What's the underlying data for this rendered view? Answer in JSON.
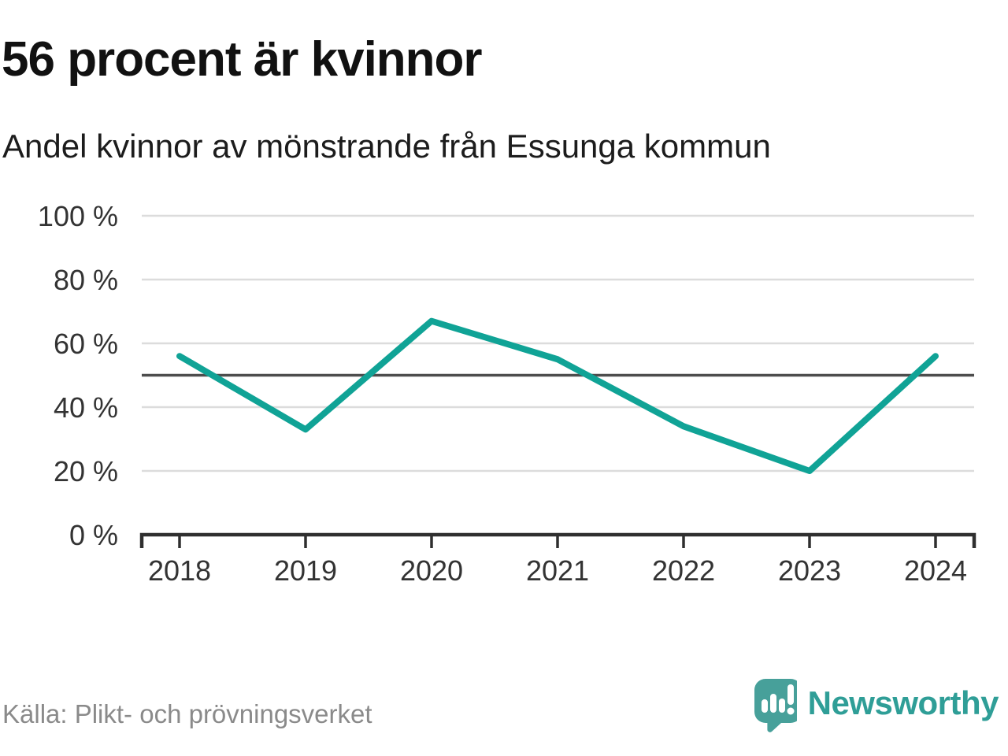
{
  "header": {
    "title": "56 procent är kvinnor",
    "subtitle": "Andel kvinnor av mönstrande från Essunga kommun"
  },
  "chart_data": {
    "type": "line",
    "title": "56 procent är kvinnor",
    "subtitle": "Andel kvinnor av mönstrande från Essunga kommun",
    "categories": [
      "2018",
      "2019",
      "2020",
      "2021",
      "2022",
      "2023",
      "2024"
    ],
    "series": [
      {
        "name": "Andel kvinnor",
        "values": [
          56,
          33,
          67,
          55,
          34,
          20,
          56
        ]
      }
    ],
    "unit": "%",
    "ylim": [
      0,
      100
    ],
    "yticks": [
      0,
      20,
      40,
      60,
      80,
      100
    ],
    "ytick_label_format": "{v} %",
    "reference_line": 50,
    "grid": "horizontal",
    "legend": "none",
    "colors": {
      "line": "#10a396",
      "grid": "#dcdcdc",
      "reference": "#4d4d4d",
      "axis": "#2f2f2f",
      "tick_label": "#333333"
    }
  },
  "footer": {
    "source": "Källa: Plikt- och prövningsverket",
    "brand": "Newsworthy"
  },
  "logo": {
    "icon": "newsworthy-speech-bubble-bar-chart-icon",
    "color": "#47a09a"
  }
}
